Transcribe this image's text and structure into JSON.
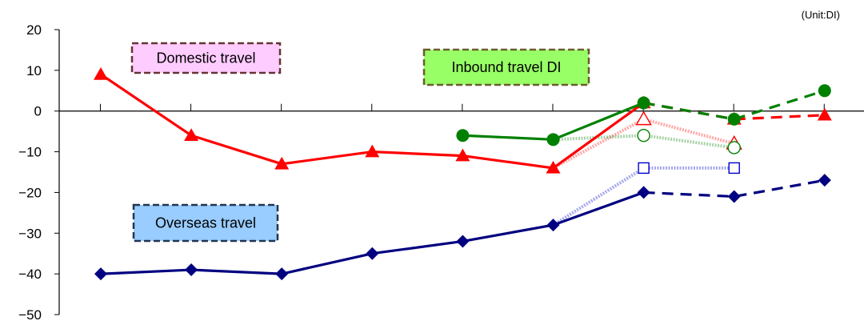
{
  "chart_data": {
    "type": "line",
    "unit_label": "(Unit:DI)",
    "ylim": [
      -50,
      20
    ],
    "y_ticks": [
      20,
      10,
      0,
      -10,
      -20,
      -30,
      -40,
      -50
    ],
    "y_tick_labels": [
      "20",
      "10",
      "0",
      "−10",
      "−20",
      "−30",
      "−40",
      "−50"
    ],
    "x_periods": 9,
    "annotations": [
      "Domestic travel",
      "Inbound travel DI",
      "Overseas travel"
    ],
    "series": [
      {
        "name": "Domestic travel",
        "kind": "actual",
        "marker": "triangle",
        "color": "#ff0000",
        "points": [
          [
            1,
            9
          ],
          [
            2,
            -6
          ],
          [
            3,
            -13
          ],
          [
            4,
            -10
          ],
          [
            5,
            -11
          ],
          [
            6,
            -14
          ],
          [
            7,
            2
          ]
        ]
      },
      {
        "name": "Domestic travel",
        "kind": "forecast",
        "marker": "triangle",
        "color": "#ff0000",
        "points": [
          [
            7,
            2
          ],
          [
            8,
            -2
          ],
          [
            9,
            -1
          ]
        ]
      },
      {
        "name": "Domestic travel",
        "kind": "previous forecast",
        "marker": "triangle-open",
        "color": "#ff0000",
        "points": [
          [
            6,
            -14
          ],
          [
            7,
            -2
          ],
          [
            8,
            -8
          ]
        ]
      },
      {
        "name": "Inbound travel DI",
        "kind": "actual",
        "marker": "circle",
        "color": "#008000",
        "points": [
          [
            5,
            -6
          ],
          [
            6,
            -7
          ],
          [
            7,
            2
          ]
        ]
      },
      {
        "name": "Inbound travel DI",
        "kind": "forecast",
        "marker": "circle",
        "color": "#008000",
        "points": [
          [
            7,
            2
          ],
          [
            8,
            -2
          ],
          [
            9,
            5
          ]
        ]
      },
      {
        "name": "Inbound travel DI",
        "kind": "previous forecast",
        "marker": "circle-open",
        "color": "#008000",
        "points": [
          [
            6,
            -7
          ],
          [
            7,
            -6
          ],
          [
            8,
            -9
          ]
        ]
      },
      {
        "name": "Overseas travel",
        "kind": "actual",
        "marker": "diamond",
        "color": "#000080",
        "points": [
          [
            1,
            -40
          ],
          [
            2,
            -39
          ],
          [
            3,
            -40
          ],
          [
            4,
            -35
          ],
          [
            5,
            -32
          ],
          [
            6,
            -28
          ],
          [
            7,
            -20
          ]
        ]
      },
      {
        "name": "Overseas travel",
        "kind": "forecast",
        "marker": "diamond",
        "color": "#000080",
        "points": [
          [
            7,
            -20
          ],
          [
            8,
            -21
          ],
          [
            9,
            -17
          ]
        ]
      },
      {
        "name": "Overseas travel",
        "kind": "previous forecast",
        "marker": "square-open",
        "color": "#0000cc",
        "points": [
          [
            6,
            -28
          ],
          [
            7,
            -14
          ],
          [
            8,
            -14
          ]
        ]
      }
    ],
    "label_box_colors": {
      "Domestic travel": "#ffccff",
      "Inbound travel DI": "#99ff66",
      "Overseas travel": "#99ccff"
    }
  }
}
